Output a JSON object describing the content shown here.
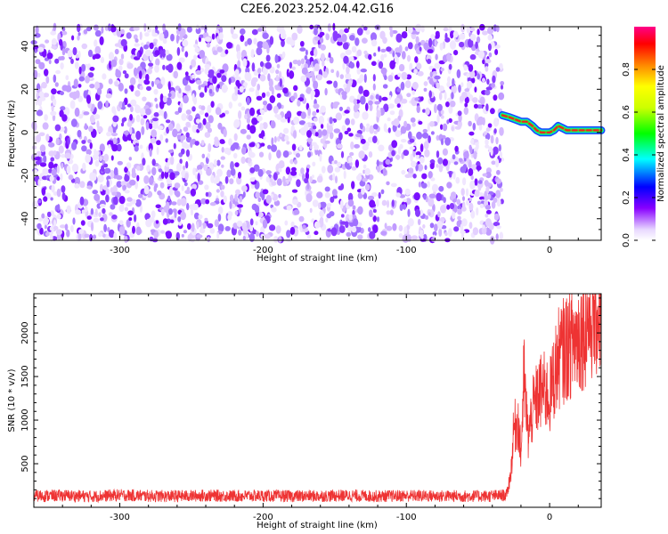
{
  "title": "C2E6.2023.252.04.42.G16",
  "chart_data": [
    {
      "type": "heatmap",
      "xlabel": "Height of straight line (km)",
      "ylabel": "Frequency (Hz)",
      "xlim": [
        -360,
        36
      ],
      "ylim": [
        -50,
        49
      ],
      "xticks": [
        -300,
        -200,
        -100,
        0
      ],
      "yticks": [
        -40,
        -20,
        0,
        20,
        40
      ],
      "noise_region_x": [
        -360,
        -33
      ],
      "signal_trace": {
        "x": [
          -33,
          -28,
          -24,
          -20,
          -16,
          -12,
          -9,
          -6,
          -3,
          0,
          3,
          6,
          9,
          12,
          15,
          20,
          25,
          30,
          36
        ],
        "y": [
          8,
          7,
          6,
          5,
          5,
          3,
          1,
          0,
          0,
          0,
          1,
          3,
          2,
          1,
          1,
          1,
          1,
          1,
          1
        ]
      },
      "colorbar": {
        "label": "Normalized spectral amplitude",
        "range": [
          0.0,
          1.0
        ],
        "ticks": [
          0.0,
          0.2,
          0.4,
          0.6,
          0.8
        ],
        "tick_labels": [
          "0.0",
          "0.2",
          "0.4",
          "0.6",
          "0.8"
        ]
      },
      "grid": false
    },
    {
      "type": "line",
      "xlabel": "Height of straight line (km)",
      "ylabel": "SNR (10 * v/v)",
      "xlim": [
        -360,
        36
      ],
      "ylim": [
        0,
        2450
      ],
      "xticks": [
        -300,
        -200,
        -100,
        0
      ],
      "yticks": [
        500,
        1000,
        1500,
        2000
      ],
      "series": [
        {
          "color": "#ee3333",
          "x": [
            -360,
            -340,
            -320,
            -300,
            -280,
            -260,
            -240,
            -220,
            -200,
            -180,
            -160,
            -140,
            -120,
            -100,
            -80,
            -60,
            -40,
            -30,
            -27,
            -25,
            -22,
            -20,
            -18,
            -15,
            -12,
            -10,
            -7,
            -5,
            -2,
            0,
            3,
            6,
            10,
            15,
            20,
            25,
            30,
            36
          ],
          "values": [
            130,
            135,
            125,
            140,
            130,
            128,
            135,
            130,
            132,
            128,
            130,
            135,
            127,
            133,
            130,
            128,
            130,
            140,
            400,
            900,
            1000,
            600,
            1500,
            800,
            1100,
            1200,
            1300,
            1350,
            1300,
            1250,
            1500,
            1700,
            1800,
            1900,
            1950,
            2100,
            2200,
            2300
          ]
        }
      ],
      "grid": false
    }
  ]
}
